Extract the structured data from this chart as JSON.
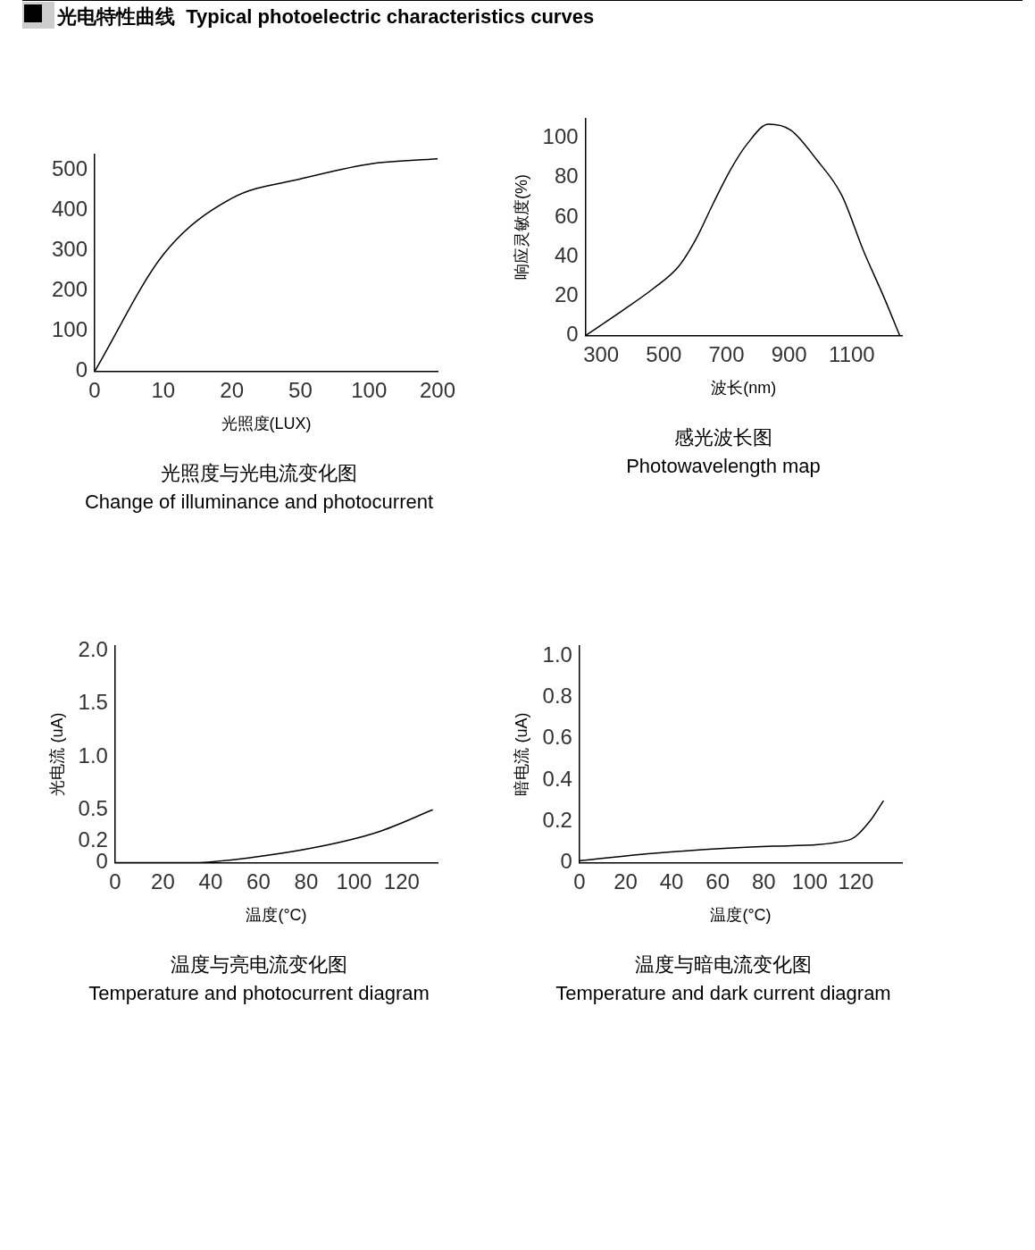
{
  "chart_data": [
    {
      "type": "line",
      "title": "光照度与光电流变化图",
      "subtitle": "Change of illuminance and photocurrent",
      "annotations": [
        "光电特性曲线  Typical photoelectric characteristics curves"
      ],
      "xlabel": "光照度(LUX)",
      "categories": [
        "0",
        "10",
        "20",
        "50",
        "100",
        "200"
      ],
      "values": [
        0,
        290,
        430,
        478,
        515,
        528
      ],
      "color": "#000000",
      "ylim": [
        0,
        540
      ],
      "yticks": [
        0,
        100,
        200,
        300,
        400,
        500
      ]
    },
    {
      "type": "line",
      "title": "感光波长图",
      "subtitle": "Photowavelength map",
      "xlabel": "波长(nm)",
      "ylabel": "响应灵敏度(%)",
      "x": [
        250,
        371,
        468,
        547,
        603,
        658,
        713,
        766,
        834,
        905,
        988,
        1068,
        1137,
        1201,
        1253
      ],
      "values": [
        0,
        13,
        24,
        35,
        49,
        67,
        84,
        97,
        107,
        104,
        89,
        71,
        43,
        20,
        0
      ],
      "color": "#000000",
      "xlim": [
        250,
        1260
      ],
      "xticks": [
        300,
        500,
        700,
        900,
        1100
      ],
      "ylim": [
        0,
        110
      ],
      "yticks": [
        0,
        20,
        40,
        60,
        80,
        100
      ]
    },
    {
      "type": "line",
      "title": "温度与亮电流变化图",
      "subtitle": "Temperature and photocurrent diagram",
      "xlabel": "温度(°C)",
      "ylabel": "光电流 (uA)",
      "x": [
        0,
        32,
        57,
        85,
        110,
        133
      ],
      "values": [
        0,
        0,
        0.05,
        0.15,
        0.29,
        0.5
      ],
      "color": "#000000",
      "xlim": [
        0,
        135
      ],
      "xticks": [
        0,
        20,
        40,
        60,
        80,
        100,
        120
      ],
      "ylim": [
        0,
        2.05
      ],
      "yticks": [
        0,
        {
          "value": 0.2,
          "label": "0.2"
        },
        {
          "value": 0.5,
          "label": "0.5"
        },
        {
          "value": 1,
          "label": "1.0"
        },
        {
          "value": 1.5,
          "label": "1.5"
        },
        {
          "value": 2,
          "label": "2.0"
        }
      ]
    },
    {
      "type": "line",
      "title": "温度与暗电流变化图",
      "subtitle": "Temperature and dark current diagram",
      "xlabel": "温度(°C)",
      "ylabel": "暗电流 (uA)",
      "x": [
        0,
        37,
        84,
        117,
        126,
        132
      ],
      "values": [
        0.01,
        0.05,
        0.08,
        0.11,
        0.2,
        0.3
      ],
      "color": "#000000",
      "xlim": [
        0,
        140
      ],
      "xticks": [
        0,
        20,
        40,
        60,
        80,
        100,
        120
      ],
      "ylim": [
        0,
        1.05
      ],
      "yticks": [
        0,
        {
          "value": 0.2,
          "label": "0.2"
        },
        {
          "value": 0.4,
          "label": "0.4"
        },
        {
          "value": 0.6,
          "label": "0.6"
        },
        {
          "value": 0.8,
          "label": "0.8"
        },
        {
          "value": 1,
          "label": "1.0"
        }
      ]
    }
  ]
}
